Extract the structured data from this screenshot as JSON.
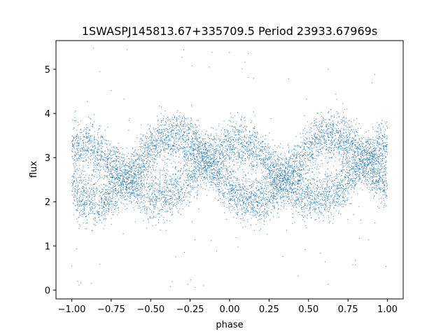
{
  "chart_data": {
    "type": "scatter",
    "title": "1SWASPJ145813.67+335709.5 Period 23933.67969s",
    "xlabel": "phase",
    "ylabel": "flux",
    "xlim": [
      -1.1,
      1.1
    ],
    "ylim": [
      -0.2,
      5.65
    ],
    "xticks": [
      -1.0,
      -0.75,
      -0.5,
      -0.25,
      0.0,
      0.25,
      0.5,
      0.75,
      1.0
    ],
    "xtick_labels": [
      "−1.00",
      "−0.75",
      "−0.50",
      "−0.25",
      "0.00",
      "0.25",
      "0.50",
      "0.75",
      "1.00"
    ],
    "yticks": [
      0,
      1,
      2,
      3,
      4,
      5
    ],
    "ytick_labels": [
      "0",
      "1",
      "2",
      "3",
      "4",
      "5"
    ],
    "grid": false,
    "marker_color": "#1f77b4",
    "series": [
      {
        "description": "folded light curve, two overlapping sinusoidal bands (period in phase 1.0)",
        "x_range": [
          -1.0,
          1.0
        ],
        "band_a": {
          "mean": 2.75,
          "amplitude": 0.75,
          "peak_phase": -0.35,
          "repeat_peak_phase": 0.65,
          "trough_phase": 0.15
        },
        "band_b": {
          "mean": 2.7,
          "amplitude": 0.6,
          "peak_phase": -0.95,
          "trough_phase": -0.45
        },
        "scatter_sigma": 0.28,
        "outlier_range": [
          0.0,
          5.5
        ]
      }
    ]
  }
}
